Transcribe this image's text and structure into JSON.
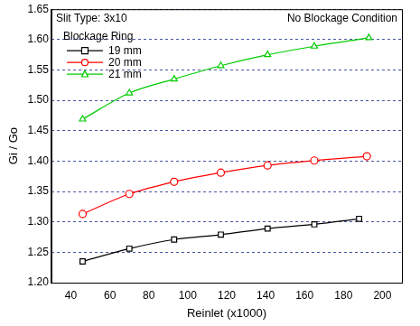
{
  "chart_data": {
    "type": "line",
    "annotations": [
      "Slit Type: 3x10",
      "No Blockage Condition"
    ],
    "x_label": "Reinlet (x1000)",
    "y_label": "Gi / Go",
    "legend_title": "Blockage Ring",
    "legend": "upper left",
    "grid": true,
    "xlim": [
      30,
      210
    ],
    "xticks": [
      40,
      60,
      80,
      100,
      120,
      140,
      160,
      180,
      200
    ],
    "ylim": [
      1.2,
      1.65
    ],
    "yticks": [
      {
        "value": 1.2,
        "label": "1.20"
      },
      1.25,
      {
        "value": 1.3,
        "label": "1.30"
      },
      1.35,
      {
        "value": 1.4,
        "label": "1.40"
      },
      1.45,
      {
        "value": 1.5,
        "label": "1.50"
      },
      1.55,
      {
        "value": 1.6,
        "label": "1.60"
      },
      1.65
    ],
    "series": [
      {
        "name": "19 mm",
        "color": "#000000",
        "marker": "square",
        "line_style": "solid",
        "x": [
          46,
          70,
          93,
          117,
          141,
          165,
          188
        ],
        "values": [
          1.235,
          1.256,
          1.271,
          1.279,
          1.289,
          1.296,
          1.305
        ]
      },
      {
        "name": "20 mm",
        "color": "#ff0000",
        "marker": "circle",
        "line_style": "solid",
        "x": [
          46,
          70,
          93,
          117,
          141,
          165,
          192
        ],
        "values": [
          1.313,
          1.346,
          1.366,
          1.381,
          1.393,
          1.401,
          1.408
        ]
      },
      {
        "name": "21 mm",
        "color": "#00cc00",
        "marker": "triangle",
        "line_style": "solid",
        "x": [
          46,
          70,
          93,
          117,
          141,
          165,
          193
        ],
        "values": [
          1.469,
          1.512,
          1.535,
          1.557,
          1.575,
          1.589,
          1.603
        ]
      }
    ]
  }
}
